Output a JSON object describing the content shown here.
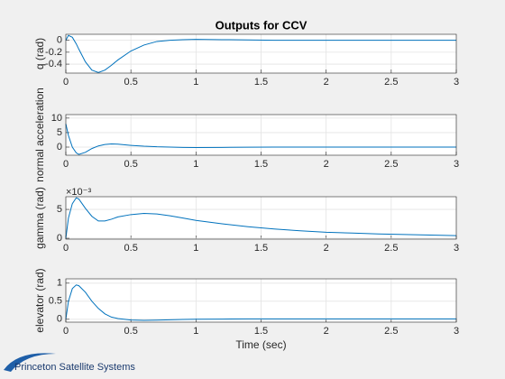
{
  "chart_data": [
    {
      "type": "line",
      "title": "Outputs for CCV",
      "y_label": "q (rad)",
      "x": [
        0,
        0.02,
        0.05,
        0.08,
        0.1,
        0.15,
        0.2,
        0.25,
        0.3,
        0.35,
        0.4,
        0.5,
        0.6,
        0.7,
        0.8,
        0.9,
        1.0,
        1.2,
        1.4,
        1.6,
        1.8,
        2.0,
        2.2,
        2.4,
        2.6,
        2.8,
        3.0
      ],
      "series": [
        {
          "color": "#0072bd",
          "values": [
            0,
            0.08,
            0.05,
            -0.06,
            -0.15,
            -0.36,
            -0.5,
            -0.54,
            -0.5,
            -0.42,
            -0.33,
            -0.18,
            -0.08,
            -0.02,
            0.0,
            0.01,
            0.015,
            0.01,
            0.005,
            0,
            0,
            0,
            0,
            0,
            0,
            0,
            0
          ]
        }
      ],
      "xlim": [
        0,
        3
      ],
      "xticks": [
        0,
        0.5,
        1,
        1.5,
        2,
        2.5,
        3
      ],
      "ylim": [
        -0.55,
        0.1
      ],
      "yticks": [
        -0.4,
        -0.2,
        0
      ],
      "grid": true
    },
    {
      "type": "line",
      "y_label": "normal acceleration",
      "x": [
        0,
        0.02,
        0.05,
        0.08,
        0.1,
        0.15,
        0.2,
        0.25,
        0.3,
        0.35,
        0.4,
        0.5,
        0.6,
        0.7,
        0.8,
        0.9,
        1.0,
        1.2,
        1.4,
        1.6,
        1.8,
        2.0,
        2.2,
        2.4,
        2.6,
        2.8,
        3.0
      ],
      "series": [
        {
          "color": "#0072bd",
          "values": [
            8,
            4,
            0,
            -2,
            -2.5,
            -1.8,
            -0.5,
            0.4,
            0.9,
            1.1,
            1.0,
            0.6,
            0.3,
            0.1,
            0,
            -0.1,
            -0.15,
            -0.1,
            -0.05,
            0,
            0,
            0,
            0,
            0,
            0,
            0,
            0
          ]
        }
      ],
      "xlim": [
        0,
        3
      ],
      "xticks": [
        0,
        0.5,
        1,
        1.5,
        2,
        2.5,
        3
      ],
      "ylim": [
        -2.8,
        11.2
      ],
      "yticks": [
        0,
        5,
        10
      ],
      "grid": true
    },
    {
      "type": "line",
      "y_label": "gamma (rad)",
      "y_exponent": "×10⁻³",
      "x": [
        0,
        0.02,
        0.05,
        0.08,
        0.1,
        0.15,
        0.2,
        0.25,
        0.3,
        0.35,
        0.4,
        0.5,
        0.6,
        0.7,
        0.8,
        0.9,
        1.0,
        1.2,
        1.4,
        1.6,
        1.8,
        2.0,
        2.2,
        2.4,
        2.6,
        2.8,
        3.0
      ],
      "series": [
        {
          "color": "#0072bd",
          "values": [
            0,
            3.5,
            6,
            7,
            6.8,
            5.2,
            3.8,
            3.0,
            3.0,
            3.3,
            3.7,
            4.1,
            4.3,
            4.2,
            3.9,
            3.5,
            3.1,
            2.5,
            2.0,
            1.6,
            1.3,
            1.05,
            0.9,
            0.75,
            0.65,
            0.55,
            0.45
          ]
        }
      ],
      "xlim": [
        0,
        3
      ],
      "xticks": [
        0,
        0.5,
        1,
        1.5,
        2,
        2.5,
        3
      ],
      "ylim": [
        -0.15,
        7.2
      ],
      "yticks": [
        0,
        5
      ],
      "grid": true
    },
    {
      "type": "line",
      "y_label": "elevator (rad)",
      "x_label": "Time (sec)",
      "x": [
        0,
        0.02,
        0.05,
        0.08,
        0.1,
        0.15,
        0.2,
        0.25,
        0.3,
        0.35,
        0.4,
        0.5,
        0.6,
        0.7,
        0.8,
        0.9,
        1.0,
        1.2,
        1.4,
        1.6,
        1.8,
        2.0,
        2.2,
        2.4,
        2.6,
        2.8,
        3.0
      ],
      "series": [
        {
          "color": "#0072bd",
          "values": [
            0,
            0.5,
            0.85,
            0.95,
            0.93,
            0.75,
            0.5,
            0.3,
            0.15,
            0.06,
            0.02,
            -0.02,
            -0.03,
            -0.025,
            -0.015,
            -0.005,
            0,
            0.005,
            0.01,
            0.01,
            0.01,
            0.01,
            0.01,
            0.01,
            0.01,
            0.01,
            0.01
          ]
        }
      ],
      "xlim": [
        0,
        3
      ],
      "xticks": [
        0,
        0.5,
        1,
        1.5,
        2,
        2.5,
        3
      ],
      "ylim": [
        -0.08,
        1.12
      ],
      "yticks": [
        0,
        0.5,
        1
      ],
      "grid": true
    }
  ],
  "logo": {
    "text": "Princeton Satellite Systems"
  }
}
